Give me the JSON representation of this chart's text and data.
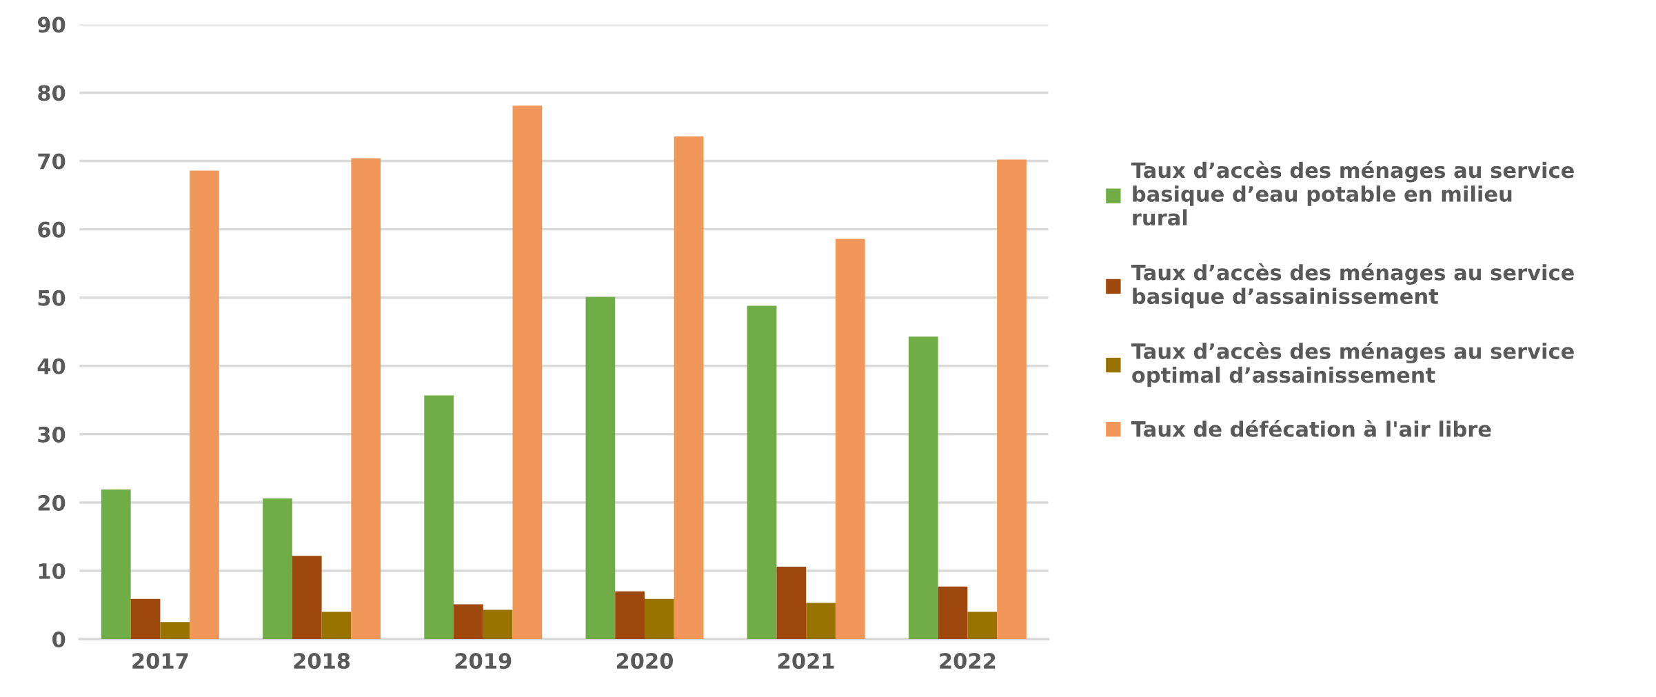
{
  "chart_data": {
    "type": "bar",
    "categories": [
      "2017",
      "2018",
      "2019",
      "2020",
      "2021",
      "2022"
    ],
    "series": [
      {
        "name": "Taux d’accès des ménages au service\nbasique d’eau potable en milieu\nrural",
        "color": "#70ad47",
        "values": [
          21.9,
          20.6,
          35.7,
          50.1,
          48.8,
          44.3
        ]
      },
      {
        "name": "Taux d’accès des ménages au service\nbasique d’assainissement",
        "color": "#9e480e",
        "values": [
          5.9,
          12.2,
          5.1,
          7.0,
          10.6,
          7.7
        ]
      },
      {
        "name": "Taux d’accès des ménages au service\noptimal d’assainissement",
        "color": "#997300",
        "values": [
          2.5,
          4.0,
          4.3,
          5.9,
          5.3,
          4.0
        ]
      },
      {
        "name": "Taux de défécation à l'air libre",
        "color": "#f1975a",
        "values": [
          68.6,
          70.4,
          78.1,
          73.6,
          58.6,
          70.2
        ]
      }
    ],
    "ylim": [
      0,
      90
    ],
    "yticks": [
      0,
      10,
      20,
      30,
      40,
      50,
      60,
      70,
      80,
      90
    ],
    "grid": "y",
    "legend": "right"
  }
}
